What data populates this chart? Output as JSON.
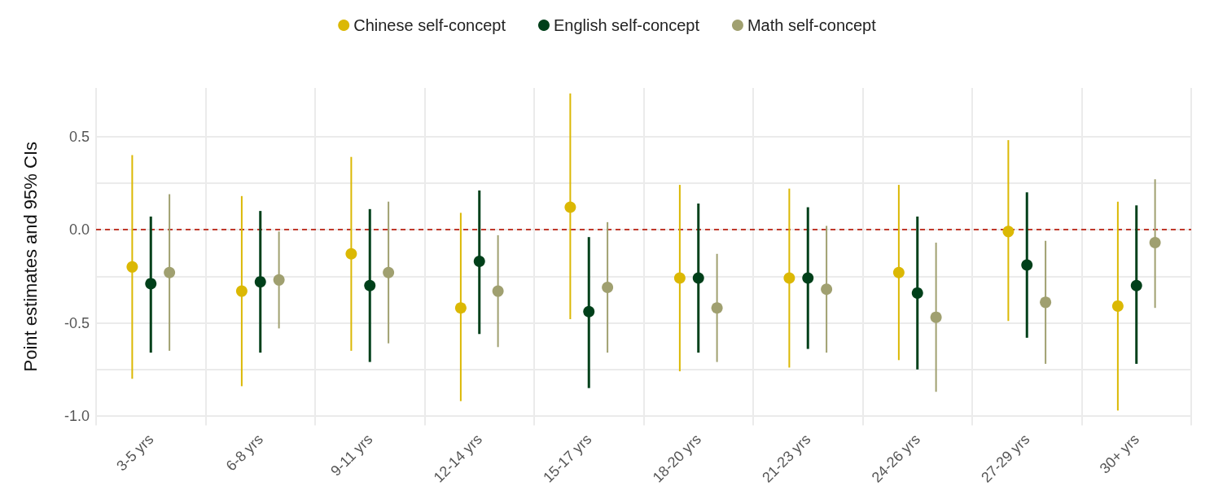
{
  "chart_data": {
    "type": "scatter",
    "ylabel": "Point estimates and 95% CIs",
    "categories": [
      "3-5 yrs",
      "6-8 yrs",
      "9-11 yrs",
      "12-14 yrs",
      "15-17 yrs",
      "18-20 yrs",
      "21-23 yrs",
      "24-26 yrs",
      "27-29 yrs",
      "30+ yrs"
    ],
    "series": [
      {
        "name": "Chinese self-concept",
        "color": "#dbb804",
        "values": [
          -0.2,
          -0.33,
          -0.13,
          -0.42,
          0.12,
          -0.26,
          -0.26,
          -0.23,
          -0.01,
          -0.41
        ],
        "errors": [
          [
            -0.8,
            0.4
          ],
          [
            -0.84,
            0.18
          ],
          [
            -0.65,
            0.39
          ],
          [
            -0.92,
            0.09
          ],
          [
            -0.48,
            0.73
          ],
          [
            -0.76,
            0.24
          ],
          [
            -0.74,
            0.22
          ],
          [
            -0.7,
            0.24
          ],
          [
            -0.49,
            0.48
          ],
          [
            -0.97,
            0.15
          ]
        ]
      },
      {
        "name": "English self-concept",
        "color": "#00401a",
        "values": [
          -0.29,
          -0.28,
          -0.3,
          -0.17,
          -0.44,
          -0.26,
          -0.26,
          -0.34,
          -0.19,
          -0.3
        ],
        "errors": [
          [
            -0.66,
            0.07
          ],
          [
            -0.66,
            0.1
          ],
          [
            -0.71,
            0.11
          ],
          [
            -0.56,
            0.21
          ],
          [
            -0.85,
            -0.04
          ],
          [
            -0.66,
            0.14
          ],
          [
            -0.64,
            0.12
          ],
          [
            -0.75,
            0.07
          ],
          [
            -0.58,
            0.2
          ],
          [
            -0.72,
            0.13
          ]
        ]
      },
      {
        "name": "Math self-concept",
        "color": "#a0a070",
        "values": [
          -0.23,
          -0.27,
          -0.23,
          -0.33,
          -0.31,
          -0.42,
          -0.32,
          -0.47,
          -0.39,
          -0.07
        ],
        "errors": [
          [
            -0.65,
            0.19
          ],
          [
            -0.53,
            -0.01
          ],
          [
            -0.61,
            0.15
          ],
          [
            -0.63,
            -0.03
          ],
          [
            -0.66,
            0.04
          ],
          [
            -0.71,
            -0.13
          ],
          [
            -0.66,
            0.02
          ],
          [
            -0.87,
            -0.07
          ],
          [
            -0.72,
            -0.06
          ],
          [
            -0.42,
            0.27
          ]
        ]
      }
    ],
    "ylim": [
      -1.05,
      0.76
    ],
    "yticks": [
      {
        "value": -1,
        "label": "-1.0"
      },
      {
        "value": -0.75,
        "label": null
      },
      {
        "value": -0.5,
        "label": "-0.5"
      },
      {
        "value": -0.25,
        "label": null
      },
      {
        "value": 0,
        "label": "0.0"
      },
      {
        "value": 0.25,
        "label": null
      },
      {
        "value": 0.5,
        "label": "0.5"
      }
    ],
    "ref_lines": [
      {
        "axis": "y",
        "value": 0,
        "color": "#c0392b",
        "line_style": "dashed"
      }
    ],
    "grid": true,
    "legend": "top",
    "marker": "circle"
  }
}
